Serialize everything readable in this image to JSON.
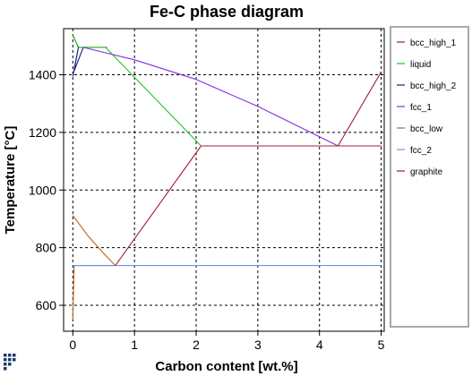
{
  "chart_data": {
    "type": "line",
    "title": "Fe-C phase diagram",
    "xlabel": "Carbon content [wt.%]",
    "ylabel": "Temperature [°C]",
    "xlim": [
      -0.15,
      5.05
    ],
    "ylim": [
      510,
      1560
    ],
    "x_ticks": [
      0,
      1,
      2,
      3,
      4,
      5
    ],
    "y_ticks": [
      600,
      800,
      1000,
      1200,
      1400
    ],
    "grid": true,
    "legend_placement": "right",
    "series": [
      {
        "name": "bcc_high_1",
        "color": "#a31c3c",
        "points": [
          [
            0.0,
            1538
          ],
          [
            0.09,
            1495
          ],
          [
            0.55,
            1495
          ],
          [
            0.1,
            1495
          ]
        ]
      },
      {
        "name": "liquid",
        "color": "#18c818",
        "points": [
          [
            0.0,
            1538
          ],
          [
            0.09,
            1495
          ],
          [
            0.53,
            1495
          ],
          [
            0.53,
            1495
          ],
          [
            2.08,
            1153
          ]
        ]
      },
      {
        "name": "bcc_high_2",
        "color": "#1a1a8c",
        "points": [
          [
            0.0,
            1394
          ],
          [
            0.09,
            1495
          ],
          [
            0.02,
            1413
          ],
          [
            0.17,
            1495
          ]
        ]
      },
      {
        "name": "fcc_1",
        "color": "#8a2be2",
        "points": [
          [
            0.17,
            1495
          ],
          [
            1.0,
            1452
          ],
          [
            2.0,
            1384
          ],
          [
            3.0,
            1290
          ],
          [
            4.0,
            1185
          ],
          [
            4.3,
            1153
          ]
        ]
      },
      {
        "name": "bcc_low",
        "color": "#b8641c",
        "points": [
          [
            0.0,
            912
          ],
          [
            0.25,
            840
          ],
          [
            0.5,
            780
          ],
          [
            0.69,
            738
          ],
          [
            0.02,
            738
          ],
          [
            0.0,
            550
          ]
        ]
      },
      {
        "name": "fcc_2",
        "color": "#6495ed",
        "points": [
          [
            0.0,
            738
          ],
          [
            5.0,
            738
          ]
        ]
      },
      {
        "name": "graphite",
        "color": "#a31c3c",
        "points": [
          [
            0.69,
            738
          ],
          [
            2.08,
            1153
          ],
          [
            5.0,
            1153
          ],
          [
            4.3,
            1153
          ],
          [
            5.0,
            1410
          ]
        ]
      }
    ]
  }
}
